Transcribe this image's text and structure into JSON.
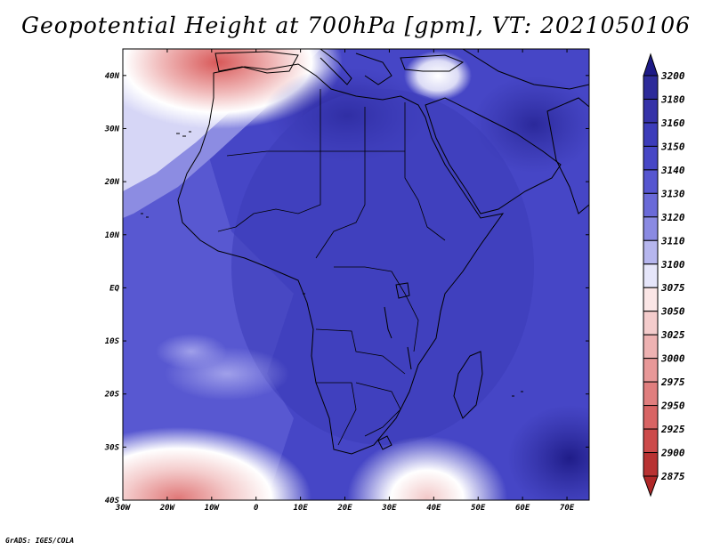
{
  "title": "Geopotential Height at 700hPa [gpm], VT: 2021050106",
  "credit": "GrADS: IGES/COLA",
  "map": {
    "lon_ticks": [
      "30W",
      "20W",
      "10W",
      "0",
      "10E",
      "20E",
      "30E",
      "40E",
      "50E",
      "60E",
      "70E"
    ],
    "lat_ticks": [
      "40N",
      "30N",
      "20N",
      "10N",
      "EQ",
      "10S",
      "20S",
      "30S",
      "40S"
    ],
    "lon_range": [
      -30,
      75
    ],
    "lat_range": [
      -40,
      45
    ],
    "background_color": "#4a4ad0",
    "coastline_color": "#000000",
    "features": [
      {
        "name": "high-over-north-africa",
        "lon": 22,
        "lat": 31,
        "value": 3180,
        "color": "#2c2aa0"
      },
      {
        "name": "trough-iberia",
        "lon": -5,
        "lat": 41,
        "value": 2975,
        "color": "#e07070"
      },
      {
        "name": "trough-south-atlantic",
        "lon": -20,
        "lat": -40,
        "value": 3000,
        "color": "#e89090"
      },
      {
        "name": "trough-south-indian",
        "lon": 42,
        "lat": -40,
        "value": 3050,
        "color": "#f2c8c8"
      },
      {
        "name": "ridge-southeast-indian",
        "lon": 70,
        "lat": -33,
        "value": 3170,
        "color": "#2d2b9a"
      },
      {
        "name": "weak-area-southeast-atlantic",
        "lon": -10,
        "lat": -17,
        "value": 3120,
        "color": "#7b7be0"
      },
      {
        "name": "weak-area-east-med",
        "lon": 40,
        "lat": 40,
        "value": 3100,
        "color": "#d8d8f6"
      }
    ]
  },
  "colorbar": {
    "levels": [
      "3200",
      "3180",
      "3160",
      "3150",
      "3140",
      "3130",
      "3120",
      "3110",
      "3100",
      "3075",
      "3050",
      "3025",
      "3000",
      "2975",
      "2950",
      "2925",
      "2900",
      "2875"
    ],
    "colors": [
      "#241f8f",
      "#2d2b9a",
      "#3532a8",
      "#3c3cba",
      "#4747c6",
      "#5656d0",
      "#6a6ad8",
      "#8a8ae2",
      "#b6b6ee",
      "#e6e6fa",
      "#fbe6e6",
      "#f4cccc",
      "#eeb2b2",
      "#e89898",
      "#e07e7e",
      "#d86464",
      "#cc4a4a",
      "#b83232",
      "#a02020"
    ],
    "top_color": "#1d1a86",
    "bottom_color": "#b02828"
  }
}
